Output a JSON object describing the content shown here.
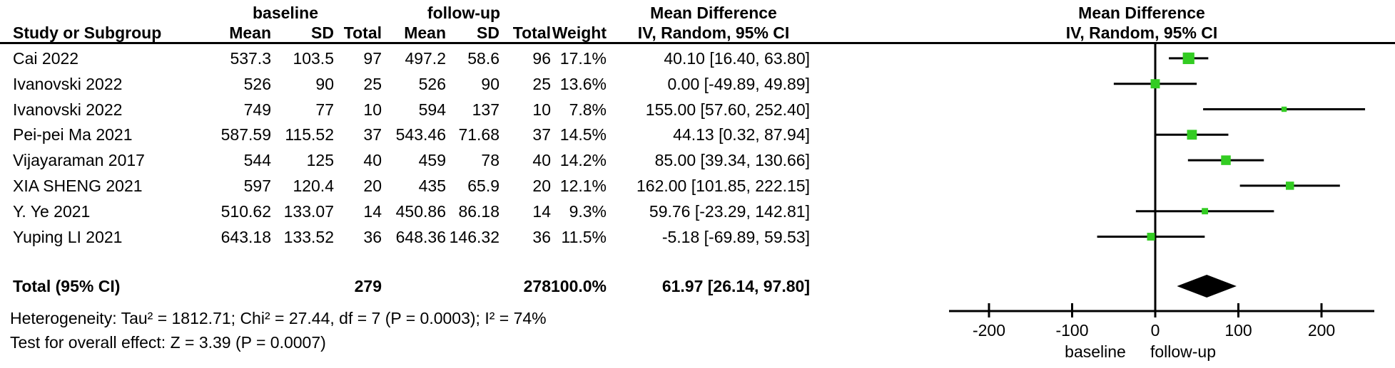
{
  "header": {
    "group_baseline": "baseline",
    "group_followup": "follow-up",
    "group_md_table": "Mean Difference",
    "group_md_plot": "Mean Difference",
    "col_study": "Study or Subgroup",
    "col_mean_bl": "Mean",
    "col_sd_bl": "SD",
    "col_total_bl": "Total",
    "col_mean_fu": "Mean",
    "col_sd_fu": "SD",
    "col_total_fu": "Total",
    "col_weight": "Weight",
    "col_ci_table": "IV, Random, 95% CI",
    "col_ci_plot": "IV, Random, 95% CI"
  },
  "total_row": {
    "label": "Total (95% CI)",
    "baseline_total": "279",
    "followup_total": "278",
    "weight": "100.0%",
    "ci_text": "61.97 [26.14, 97.80]"
  },
  "footer": {
    "heterogeneity": "Heterogeneity: Tau² = 1812.71; Chi² = 27.44, df = 7 (P = 0.0003); I² = 74%",
    "overall_effect": "Test for overall effect: Z = 3.39 (P = 0.0007)"
  },
  "colors": {
    "marker_green": "#33CC22",
    "diamond_black": "#000000",
    "line_black": "#000000"
  },
  "chart_data": {
    "type": "scatter",
    "subtype": "forest-plot",
    "title": "Mean Difference",
    "effect_model": "IV, Random, 95% CI",
    "studies": [
      {
        "study": "Cai 2022",
        "bl_mean": "537.3",
        "bl_sd": "103.5",
        "bl_total": "97",
        "fu_mean": "497.2",
        "fu_sd": "58.6",
        "fu_total": "96",
        "weight": "17.1%",
        "ci_text": "40.10 [16.40, 63.80]",
        "md": 40.1,
        "lo": 16.4,
        "hi": 63.8,
        "w": 17.1
      },
      {
        "study": "Ivanovski 2022",
        "bl_mean": "526",
        "bl_sd": "90",
        "bl_total": "25",
        "fu_mean": "526",
        "fu_sd": "90",
        "fu_total": "25",
        "weight": "13.6%",
        "ci_text": "0.00 [-49.89, 49.89]",
        "md": 0.0,
        "lo": -49.89,
        "hi": 49.89,
        "w": 13.6
      },
      {
        "study": "Ivanovski 2022",
        "bl_mean": "749",
        "bl_sd": "77",
        "bl_total": "10",
        "fu_mean": "594",
        "fu_sd": "137",
        "fu_total": "10",
        "weight": "7.8%",
        "ci_text": "155.00 [57.60, 252.40]",
        "md": 155.0,
        "lo": 57.6,
        "hi": 252.4,
        "w": 7.8
      },
      {
        "study": "Pei-pei Ma 2021",
        "bl_mean": "587.59",
        "bl_sd": "115.52",
        "bl_total": "37",
        "fu_mean": "543.46",
        "fu_sd": "71.68",
        "fu_total": "37",
        "weight": "14.5%",
        "ci_text": "44.13 [0.32, 87.94]",
        "md": 44.13,
        "lo": 0.32,
        "hi": 87.94,
        "w": 14.5
      },
      {
        "study": "Vijayaraman 2017",
        "bl_mean": "544",
        "bl_sd": "125",
        "bl_total": "40",
        "fu_mean": "459",
        "fu_sd": "78",
        "fu_total": "40",
        "weight": "14.2%",
        "ci_text": "85.00 [39.34, 130.66]",
        "md": 85.0,
        "lo": 39.34,
        "hi": 130.66,
        "w": 14.2
      },
      {
        "study": "XIA SHENG 2021",
        "bl_mean": "597",
        "bl_sd": "120.4",
        "bl_total": "20",
        "fu_mean": "435",
        "fu_sd": "65.9",
        "fu_total": "20",
        "weight": "12.1%",
        "ci_text": "162.00 [101.85, 222.15]",
        "md": 162.0,
        "lo": 101.85,
        "hi": 222.15,
        "w": 12.1
      },
      {
        "study": "Y. Ye 2021",
        "bl_mean": "510.62",
        "bl_sd": "133.07",
        "bl_total": "14",
        "fu_mean": "450.86",
        "fu_sd": "86.18",
        "fu_total": "14",
        "weight": "9.3%",
        "ci_text": "59.76 [-23.29, 142.81]",
        "md": 59.76,
        "lo": -23.29,
        "hi": 142.81,
        "w": 9.3
      },
      {
        "study": "Yuping LI 2021",
        "bl_mean": "643.18",
        "bl_sd": "133.52",
        "bl_total": "36",
        "fu_mean": "648.36",
        "fu_sd": "146.32",
        "fu_total": "36",
        "weight": "11.5%",
        "ci_text": "-5.18 [-69.89, 59.53]",
        "md": -5.18,
        "lo": -69.89,
        "hi": 59.53,
        "w": 11.5
      }
    ],
    "pooled": {
      "md": 61.97,
      "lo": 26.14,
      "hi": 97.8
    },
    "x_axis": {
      "ticks": [
        -200,
        -100,
        0,
        100,
        200
      ],
      "range": [
        -248,
        263
      ],
      "left_label": "baseline",
      "right_label": "follow-up"
    },
    "xlabel": "",
    "ylabel": "",
    "legend": null,
    "grid": false
  }
}
